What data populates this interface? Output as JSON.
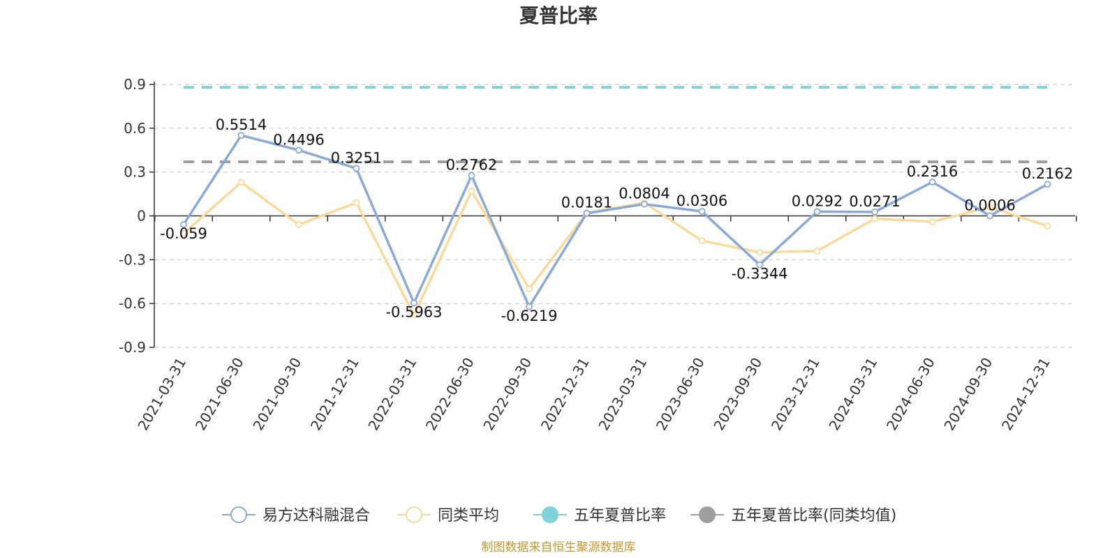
{
  "chart_data": {
    "type": "line",
    "title": "夏普比率",
    "categories": [
      "2021-03-31",
      "2021-06-30",
      "2021-09-30",
      "2021-12-31",
      "2022-03-31",
      "2022-06-30",
      "2022-09-30",
      "2022-12-31",
      "2023-03-31",
      "2023-06-30",
      "2023-09-30",
      "2023-12-31",
      "2024-03-31",
      "2024-06-30",
      "2024-09-30",
      "2024-12-31"
    ],
    "ylim": [
      -0.9,
      0.9
    ],
    "yticks": [
      0.9,
      0.6,
      0.3,
      0,
      -0.3,
      -0.6,
      -0.9
    ],
    "grid": true,
    "legend_position": "bottom",
    "series": [
      {
        "name": "易方达科融混合",
        "color": "#8aa9d6",
        "values": [
          -0.059,
          0.5514,
          0.4496,
          0.3251,
          -0.5963,
          0.2762,
          -0.6219,
          0.0181,
          0.0804,
          0.0306,
          -0.3344,
          0.0292,
          0.0271,
          0.2316,
          0.0006,
          0.2162
        ],
        "labels": [
          "-0.059",
          "0.5514",
          "0.4496",
          "0.3251",
          "-0.5963",
          "0.2762",
          "-0.6219",
          "0.0181",
          "0.0804",
          "0.0306",
          "-0.3344",
          "0.0292",
          "0.0271",
          "0.2316",
          "0.0006",
          "0.2162"
        ]
      },
      {
        "name": "同类平均",
        "color": "#fbd99a",
        "values": [
          -0.12,
          0.23,
          -0.06,
          0.09,
          -0.68,
          0.17,
          -0.5,
          0.02,
          0.09,
          -0.17,
          -0.25,
          -0.24,
          -0.02,
          -0.04,
          0.06,
          -0.07
        ]
      }
    ],
    "reference_lines": [
      {
        "name": "五年夏普比率",
        "color": "#7fd3d6",
        "value": 0.88
      },
      {
        "name": "五年夏普比率(同类均值)",
        "color": "#9e9e9e",
        "value": 0.37
      }
    ],
    "source": "制图数据来自恒生聚源数据库"
  }
}
